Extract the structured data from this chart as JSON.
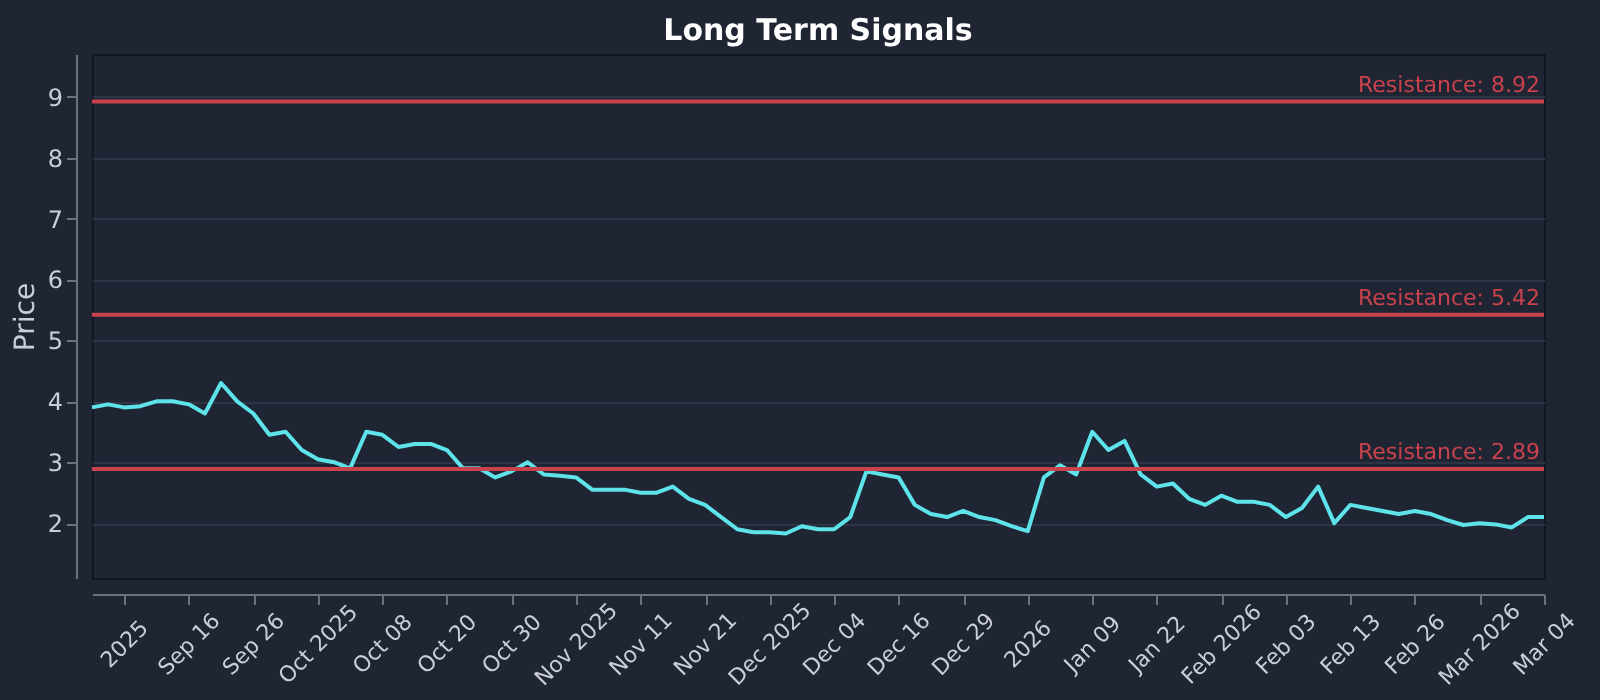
{
  "chart_data": {
    "type": "line",
    "title": "Long Term Signals",
    "ylabel": "Price",
    "categories": [
      null,
      null,
      "2025",
      null,
      null,
      null,
      "Sep 16",
      null,
      null,
      null,
      "Sep 26",
      null,
      null,
      null,
      "Oct 2025",
      null,
      null,
      null,
      "Oct 08",
      null,
      null,
      null,
      "Oct 20",
      null,
      null,
      null,
      "Oct 30",
      null,
      null,
      null,
      "Nov 2025",
      null,
      null,
      null,
      "Nov 11",
      null,
      null,
      null,
      "Nov 21",
      null,
      null,
      null,
      "Dec 2025",
      null,
      null,
      null,
      "Dec 04",
      null,
      null,
      null,
      "Dec 16",
      null,
      null,
      null,
      "Dec 29",
      null,
      null,
      null,
      "2026",
      null,
      null,
      null,
      "Jan 09",
      null,
      null,
      null,
      "Jan 22",
      null,
      null,
      null,
      "Feb 2026",
      null,
      null,
      null,
      "Feb 03",
      null,
      null,
      null,
      "Feb 13",
      null,
      null,
      null,
      "Feb 26",
      null,
      null,
      null,
      "Mar 2026",
      null,
      null,
      null,
      "Mar 04"
    ],
    "series": [
      {
        "color": "#5ee3ea",
        "values": [
          3.9,
          3.95,
          3.9,
          3.92,
          4.0,
          4.0,
          3.95,
          3.8,
          4.3,
          4.0,
          3.8,
          3.45,
          3.5,
          3.2,
          3.05,
          3.0,
          2.9,
          3.5,
          3.45,
          3.25,
          3.3,
          3.3,
          3.2,
          2.9,
          2.9,
          2.75,
          2.85,
          3.0,
          2.8,
          2.78,
          2.75,
          2.55,
          2.55,
          2.55,
          2.5,
          2.5,
          2.6,
          2.4,
          2.3,
          2.1,
          1.9,
          1.85,
          1.85,
          1.83,
          1.95,
          1.9,
          1.9,
          2.1,
          2.85,
          2.8,
          2.75,
          2.3,
          2.15,
          2.1,
          2.2,
          2.1,
          2.05,
          1.95,
          1.87,
          2.75,
          2.95,
          2.8,
          3.5,
          3.2,
          3.35,
          2.8,
          2.6,
          2.65,
          2.4,
          2.3,
          2.45,
          2.35,
          2.35,
          2.3,
          2.1,
          2.25,
          2.6,
          2.0,
          2.3,
          2.25,
          2.2,
          2.15,
          2.2,
          2.15,
          2.05,
          1.97,
          2.0,
          1.98,
          1.93,
          2.1,
          2.1
        ]
      }
    ],
    "ylim": [
      1.1,
      9.7
    ],
    "yticks": [
      2,
      3,
      4,
      5,
      6,
      7,
      8,
      9
    ],
    "grid": "y",
    "line_style": "solid",
    "marker": "none",
    "ref_lines": [
      {
        "axis": "y",
        "value": 8.92,
        "label": "Resistance: 8.92",
        "color": "#c9424c"
      },
      {
        "axis": "y",
        "value": 5.42,
        "label": "Resistance: 5.42",
        "color": "#c9424c"
      },
      {
        "axis": "y",
        "value": 2.89,
        "label": "Resistance: 2.89",
        "color": "#c9424c"
      }
    ]
  }
}
